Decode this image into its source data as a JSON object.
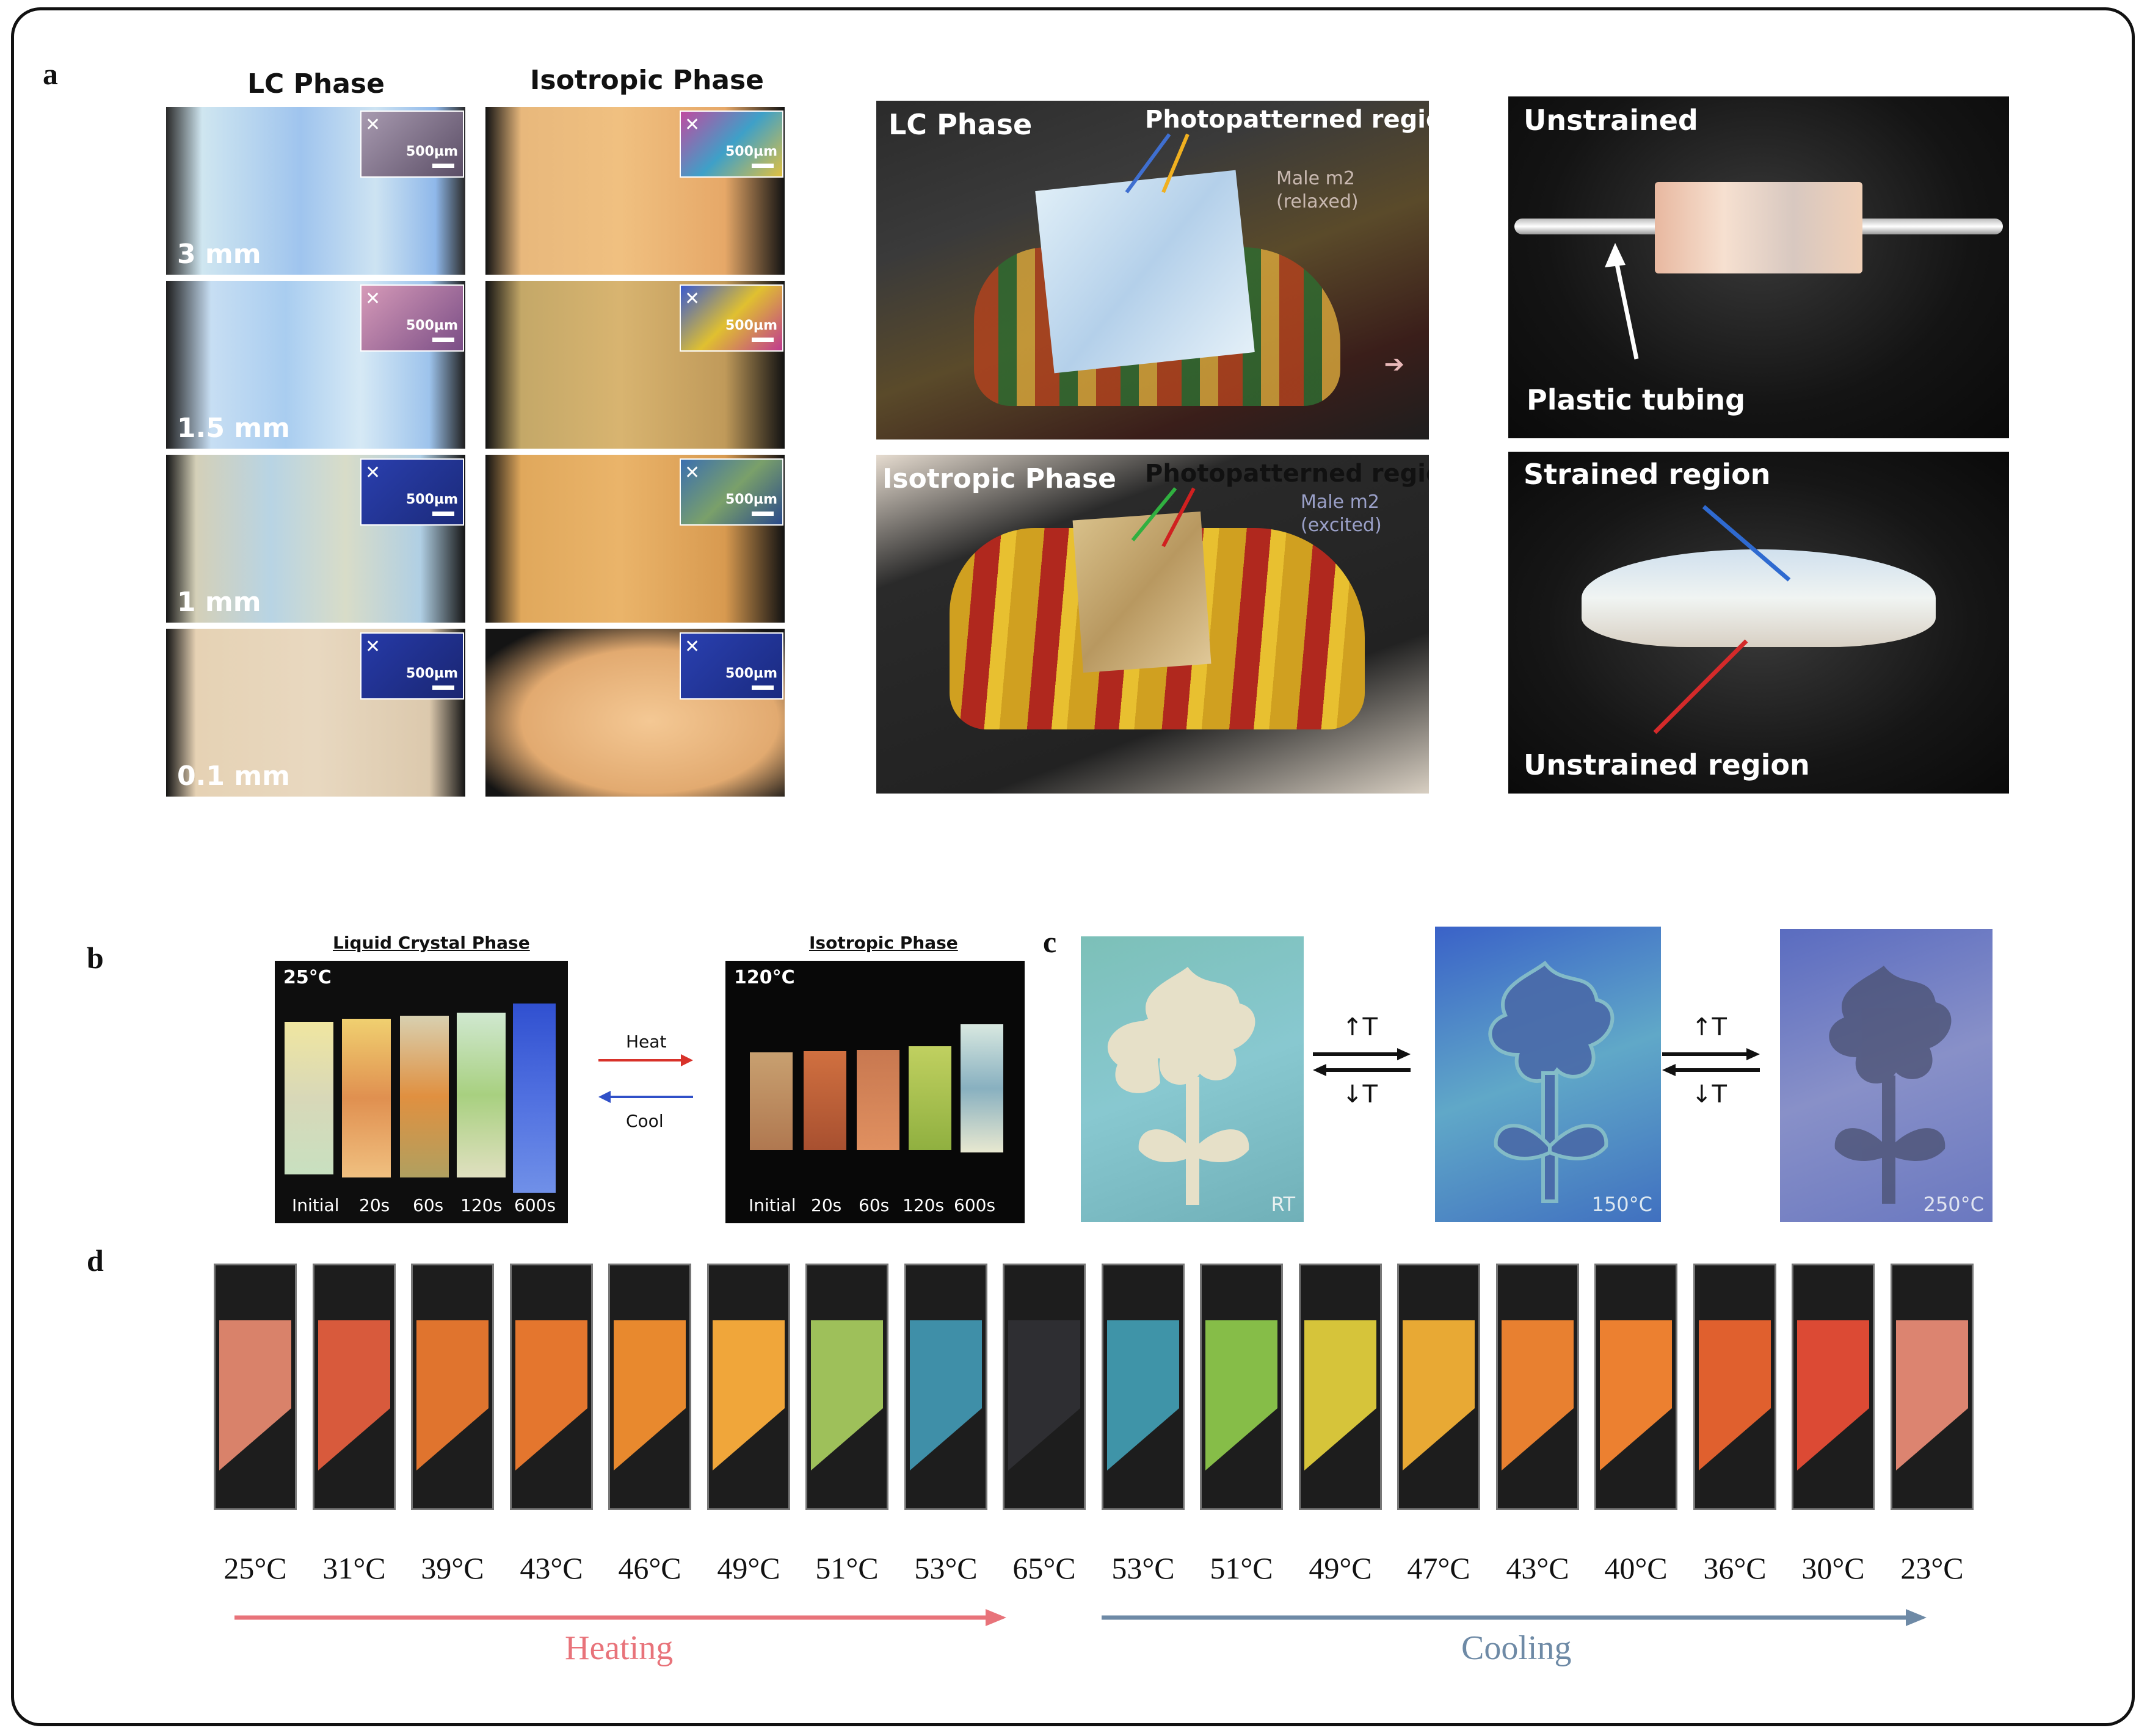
{
  "panel_letters": {
    "a": "a",
    "b": "b",
    "c": "c",
    "d": "d"
  },
  "panel_a": {
    "col1_title": "LC Phase",
    "col2_title": "Isotropic Phase",
    "thickness_labels": [
      "3 mm",
      "1.5 mm",
      "1 mm",
      "0.1 mm"
    ],
    "scale_bar": "500µm",
    "chameleon_top_title": "LC Phase",
    "chameleon_top_callout": "Photopatterned regions",
    "chameleon_top_caption1": "Male m2",
    "chameleon_top_caption2": "(relaxed)",
    "chameleon_bottom_title": "Isotropic Phase",
    "chameleon_bottom_callout": "Photopatterned regions",
    "chameleon_bottom_caption1": "Male m2",
    "chameleon_bottom_caption2": "(excited)",
    "strain_top_title": "Unstrained",
    "strain_top_label": "Plastic tubing",
    "strain_bottom_top": "Strained region",
    "strain_bottom_bottom": "Unstrained region"
  },
  "panel_b": {
    "lc_title": "Liquid Crystal Phase",
    "lc_temp": "25°C",
    "iso_title": "Isotropic Phase",
    "iso_temp": "120°C",
    "heat": "Heat",
    "cool": "Cool",
    "times": [
      "Initial",
      "20s",
      "60s",
      "120s",
      "600s"
    ]
  },
  "panel_c": {
    "temps": [
      "RT",
      "150°C",
      "250°C"
    ],
    "up_T": "T",
    "down_T": "T"
  },
  "panel_d": {
    "temps": [
      "25°C",
      "31°C",
      "39°C",
      "43°C",
      "46°C",
      "49°C",
      "51°C",
      "53°C",
      "65°C",
      "53°C",
      "51°C",
      "49°C",
      "47°C",
      "43°C",
      "40°C",
      "36°C",
      "30°C",
      "23°C"
    ],
    "colors": [
      "#d9826a",
      "#d85a3c",
      "#e0742e",
      "#e4762e",
      "#e8892e",
      "#f0a63a",
      "#9ec05a",
      "#3f8fa8",
      "#2e2e32",
      "#3f94a8",
      "#86bd48",
      "#d6c43a",
      "#e8a934",
      "#e88030",
      "#ec8030",
      "#e0602e",
      "#dc4a34",
      "#dc8470"
    ],
    "heating": "Heating",
    "cooling": "Cooling",
    "heating_color": "#e8737a",
    "cooling_color": "#6e8aa6"
  }
}
